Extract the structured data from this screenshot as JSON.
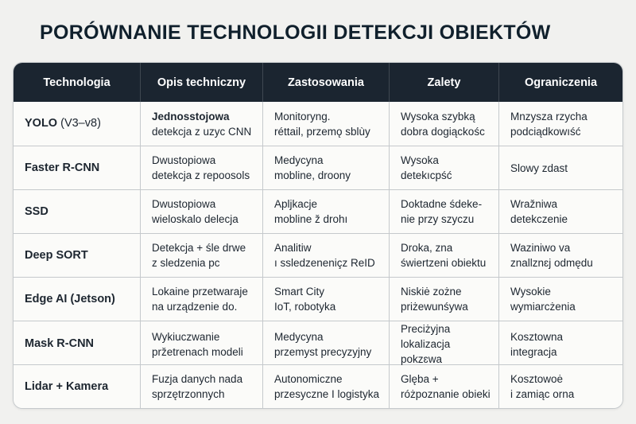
{
  "title": "PORÓWNANIE TECHNOLOGII DETEKCJI OBIEKTÓW",
  "colors": {
    "header_bg": "#1b2530",
    "header_text": "#ffffff",
    "page_bg": "#f1f1ef",
    "table_bg": "#fbfbf9",
    "text": "#1d2630",
    "border": "#c5c9cc",
    "title_color": "#10202c"
  },
  "table": {
    "columns": [
      "Technologia",
      "Opis techniczny",
      "Zastosowania",
      "Zalety",
      "Ograniczenia"
    ],
    "rows": [
      {
        "tech_name": "YOLO",
        "tech_suffix": " (V3–v8)",
        "opis": "Jednosstojowa\ndetekcja z uzyc CNN",
        "zastosowania": "Monitoryng.\nréttail, przemǫ sblùy",
        "zalety": "Wysoka szybką\ndobra dogiąckośc",
        "ograniczenia": "Mnzysza rzycha\npodciądkowıść"
      },
      {
        "tech_name": "Faster R-CNN",
        "tech_suffix": "",
        "opis": "Dwustopiowa\ndetekcja z repoosols",
        "zastosowania": "Medycyna\nmobline, droony",
        "zalety": "Wysoka\ndetekıcpść",
        "ograniczenia": "Slowy zdast"
      },
      {
        "tech_name": "SSD",
        "tech_suffix": "",
        "opis": "Dwustopiowa\nwieloskalo delecja",
        "zastosowania": "Apljkacje\nmobline ž drohı",
        "zalety": "Doktadne śdeke-\nnie przy szyczu",
        "ograniczenia": "Wražniwa\ndetekczenie"
      },
      {
        "tech_name": "Deep SORT",
        "tech_suffix": "",
        "opis": "Detekcja + śle drwe\nz sledzenia pc",
        "zastosowania": "Analitiw\nı ssledzeneniçz ReID",
        "zalety": "Droka, zna\nświertzeni obiektu",
        "ograniczenia": "Waziniwo va\nznallznɛj odmędu"
      },
      {
        "tech_name": "Edge AI (Jetson)",
        "tech_suffix": "",
        "opis": "Lokaine przetwaraje\nna urządzenie do.",
        "zastosowania": "Smart City\nIoT, robotyka",
        "zalety": "Niskiė zożne\npriżewunśywa",
        "ograniczenia": "Wysokie\nwymiarcżenia"
      },
      {
        "tech_name": "Mask R-CNN",
        "tech_suffix": "",
        "opis": "Wykiuczwanie\npržetrenach modeli",
        "zastosowania": "Medycyna\nprzemyst precyzyjny",
        "zalety": "Preciżyjna\nlokalizacja pokzɛwa",
        "ograniczenia": "Kosztowna\nintegracja"
      },
      {
        "tech_name": "Lidar + Kamera",
        "tech_suffix": "",
        "opis": "Fuzja danych nada\nsprzętrzonnych",
        "zastosowania": "Autonomiczne\nprzesyczne I logistyka",
        "zalety": "Glęba +\nróżpoznanie obieki",
        "ograniczenia": "Kosztowoė\ni zamiąc orna"
      }
    ]
  }
}
